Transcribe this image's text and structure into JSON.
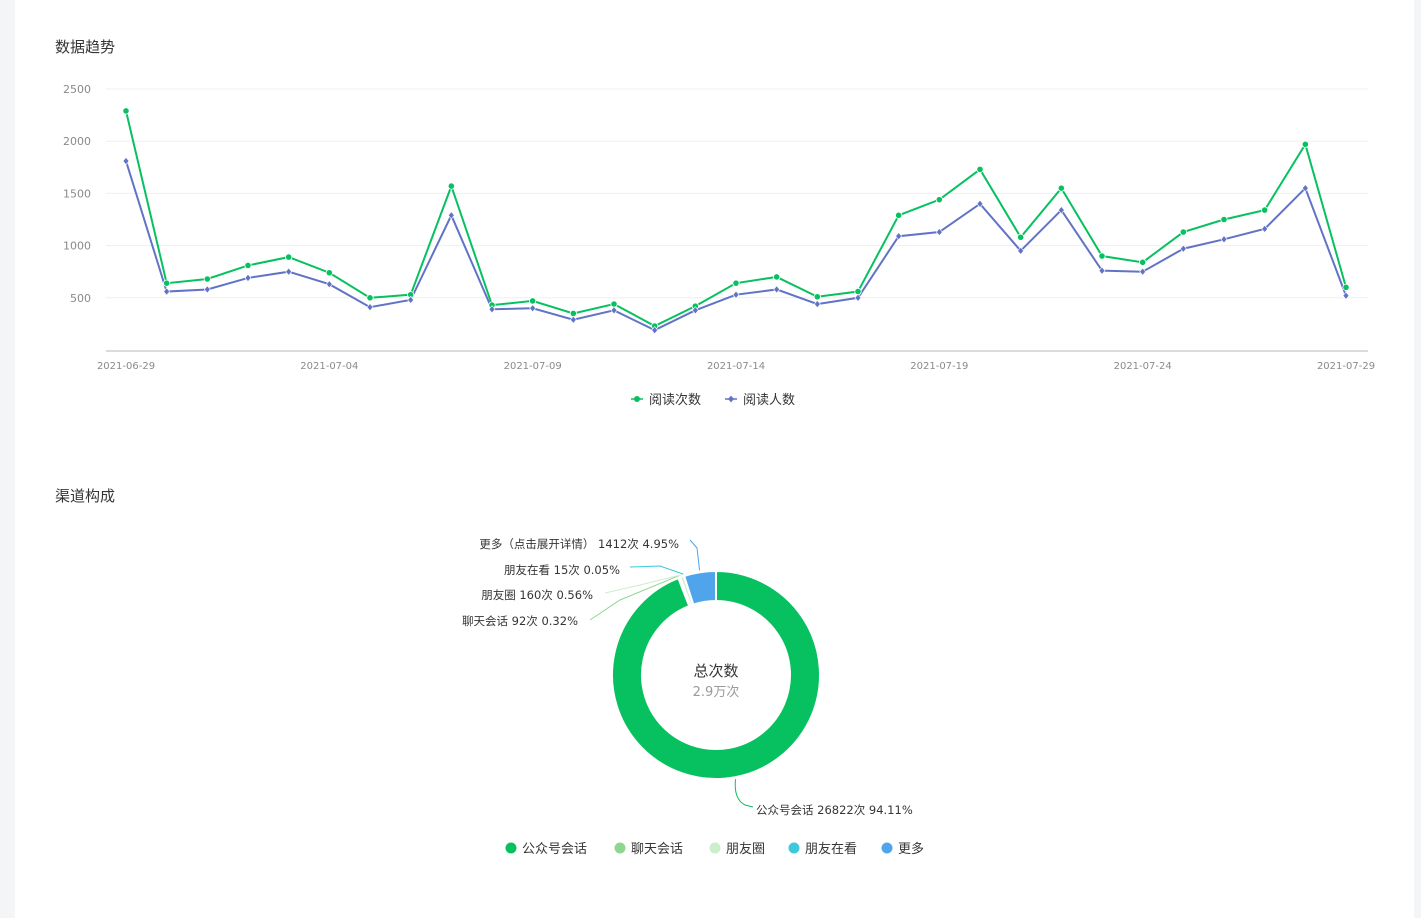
{
  "sections": {
    "trend_title": "数据趋势",
    "channel_title": "渠道构成"
  },
  "chart_data": [
    {
      "type": "line",
      "title": "",
      "xlabel": "",
      "ylabel": "",
      "ylim": [
        0,
        2500
      ],
      "yticks": [
        500,
        1000,
        1500,
        2000,
        2500
      ],
      "x": [
        "2021-06-29",
        "2021-06-30",
        "2021-07-01",
        "2021-07-02",
        "2021-07-03",
        "2021-07-04",
        "2021-07-05",
        "2021-07-06",
        "2021-07-07",
        "2021-07-08",
        "2021-07-09",
        "2021-07-10",
        "2021-07-11",
        "2021-07-12",
        "2021-07-13",
        "2021-07-14",
        "2021-07-15",
        "2021-07-16",
        "2021-07-17",
        "2021-07-18",
        "2021-07-19",
        "2021-07-20",
        "2021-07-21",
        "2021-07-22",
        "2021-07-23",
        "2021-07-24",
        "2021-07-25",
        "2021-07-26",
        "2021-07-27",
        "2021-07-28",
        "2021-07-29"
      ],
      "xtick_labels": [
        "2021-06-29",
        "2021-07-04",
        "2021-07-09",
        "2021-07-14",
        "2021-07-19",
        "2021-07-24",
        "2021-07-29"
      ],
      "legend_position": "bottom",
      "grid": true,
      "series": [
        {
          "name": "阅读次数",
          "color": "#07c160",
          "marker": "circle",
          "values": [
            2290,
            640,
            680,
            810,
            890,
            740,
            500,
            530,
            1570,
            430,
            470,
            350,
            440,
            230,
            420,
            640,
            700,
            510,
            560,
            1290,
            1440,
            1730,
            1080,
            1550,
            900,
            840,
            1130,
            1250,
            1340,
            1970,
            600
          ]
        },
        {
          "name": "阅读人数",
          "color": "#6173c6",
          "marker": "diamond",
          "values": [
            1810,
            560,
            580,
            690,
            750,
            630,
            410,
            480,
            1290,
            390,
            400,
            290,
            380,
            190,
            380,
            530,
            580,
            440,
            500,
            1090,
            1130,
            1400,
            950,
            1340,
            760,
            750,
            970,
            1060,
            1160,
            1550,
            520
          ]
        }
      ]
    },
    {
      "type": "pie",
      "title": "",
      "legend_position": "bottom",
      "center": {
        "title": "总次数",
        "value": "2.9万次"
      },
      "slices": [
        {
          "name": "公众号会话",
          "count": 26822,
          "percent": 94.11,
          "label": "公众号会话 26822次 94.11%",
          "color": "#07c160"
        },
        {
          "name": "聊天会话",
          "count": 92,
          "percent": 0.32,
          "label": "聊天会话 92次 0.32%",
          "color": "#8ed78f"
        },
        {
          "name": "朋友圈",
          "count": 160,
          "percent": 0.56,
          "label": "朋友圈 160次 0.56%",
          "color": "#cbeecc"
        },
        {
          "name": "朋友在看",
          "count": 15,
          "percent": 0.05,
          "label": "朋友在看 15次 0.05%",
          "color": "#3dc8dc"
        },
        {
          "name": "更多",
          "count": 1412,
          "percent": 4.95,
          "label": "更多（点击展开详情） 1412次 4.95%",
          "color": "#4fa4ec"
        }
      ]
    }
  ]
}
